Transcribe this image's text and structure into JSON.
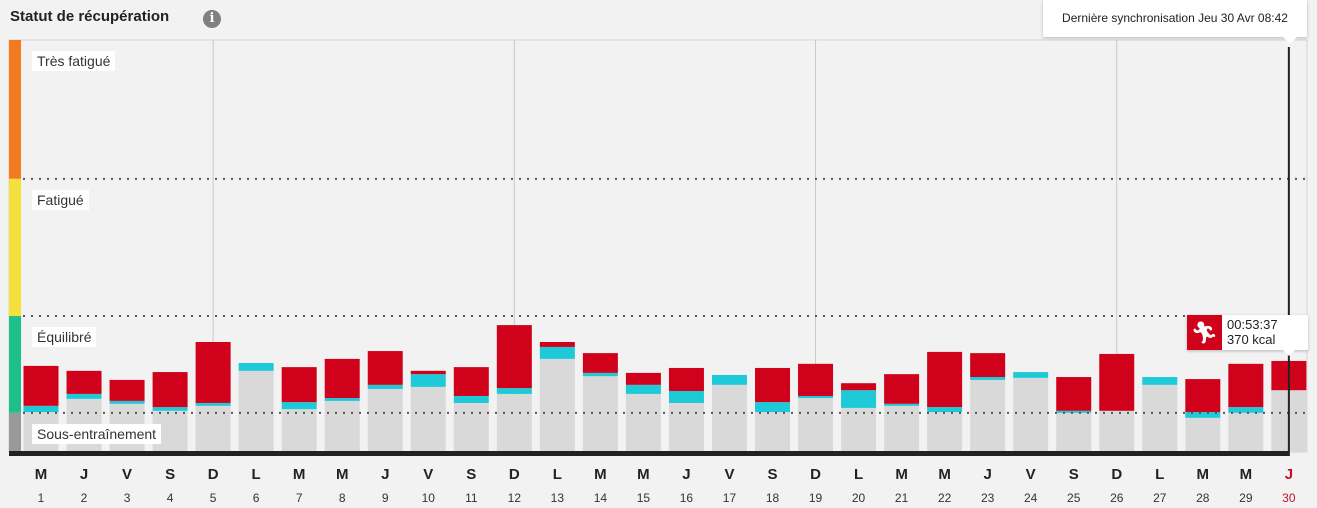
{
  "header": {
    "title": "Statut de récupération",
    "info_icon": "info-icon"
  },
  "sync_tooltip": {
    "text": "Dernière synchronisation Jeu 30 Avr 08:42"
  },
  "activity_tooltip": {
    "icon": "running-icon",
    "duration": "00:53:37",
    "calories": "370 kcal"
  },
  "colors": {
    "background": "#f2f2f2",
    "base": "#d9d9d9",
    "cyan": "#1ec9d8",
    "red": "#d0021b",
    "today": "#c8102e",
    "zone_tres_fatigue": "#f47a20",
    "zone_fatigue": "#f5e13c",
    "zone_equilibre": "#1dbf8a",
    "zone_sous_entrainement": "#999999"
  },
  "chart_data": {
    "type": "bar",
    "stacked": true,
    "ylim": [
      0,
      100
    ],
    "grid": "vertical lines on Sundays, dotted zone boundaries",
    "zones": [
      {
        "label": "Très fatigué",
        "from": 66.3,
        "to": 100
      },
      {
        "label": "Fatigué",
        "from": 33.0,
        "to": 66.3
      },
      {
        "label": "Équilibré",
        "from": 9.5,
        "to": 33.0
      },
      {
        "label": "Sous-entraînement",
        "from": 0,
        "to": 9.5
      }
    ],
    "day_letters": [
      "M",
      "J",
      "V",
      "S",
      "D",
      "L",
      "M",
      "M",
      "J",
      "V",
      "S",
      "D",
      "L",
      "M",
      "M",
      "J",
      "V",
      "S",
      "D",
      "L",
      "M",
      "M",
      "J",
      "V",
      "S",
      "D",
      "L",
      "M",
      "M",
      "J"
    ],
    "day_numbers": [
      "1",
      "2",
      "3",
      "4",
      "5",
      "6",
      "7",
      "8",
      "9",
      "10",
      "11",
      "12",
      "13",
      "14",
      "15",
      "16",
      "17",
      "18",
      "19",
      "20",
      "21",
      "22",
      "23",
      "24",
      "25",
      "26",
      "27",
      "28",
      "29",
      "30"
    ],
    "today_index": 29,
    "sunday_indices": [
      4,
      11,
      18,
      25
    ],
    "series": [
      {
        "key": "base",
        "values": [
          9.7,
          12.9,
          11.7,
          10.0,
          11.2,
          19.7,
          10.4,
          12.4,
          15.3,
          15.8,
          11.9,
          14.1,
          22.6,
          18.4,
          14.1,
          11.9,
          16.3,
          9.7,
          13.1,
          10.7,
          11.2,
          9.7,
          17.5,
          18.0,
          9.5,
          10.0,
          16.3,
          8.3,
          9.5,
          15.0
        ]
      },
      {
        "key": "cyan_top",
        "values": [
          11.2,
          14.1,
          12.4,
          10.9,
          11.9,
          21.6,
          12.1,
          13.1,
          16.3,
          18.9,
          13.6,
          15.5,
          25.5,
          19.2,
          16.3,
          14.8,
          18.7,
          12.1,
          13.6,
          15.0,
          11.7,
          10.9,
          18.2,
          19.4,
          10.0,
          10.0,
          18.2,
          9.7,
          10.9,
          15.0
        ]
      },
      {
        "key": "red_top",
        "values": [
          20.9,
          19.7,
          17.5,
          19.4,
          26.7,
          21.6,
          20.6,
          22.6,
          24.5,
          19.7,
          20.6,
          30.8,
          26.7,
          24.0,
          19.2,
          20.4,
          18.7,
          20.4,
          21.4,
          16.7,
          18.9,
          24.3,
          24.0,
          19.4,
          18.2,
          23.8,
          18.2,
          17.7,
          21.4,
          22.1
        ]
      }
    ]
  }
}
